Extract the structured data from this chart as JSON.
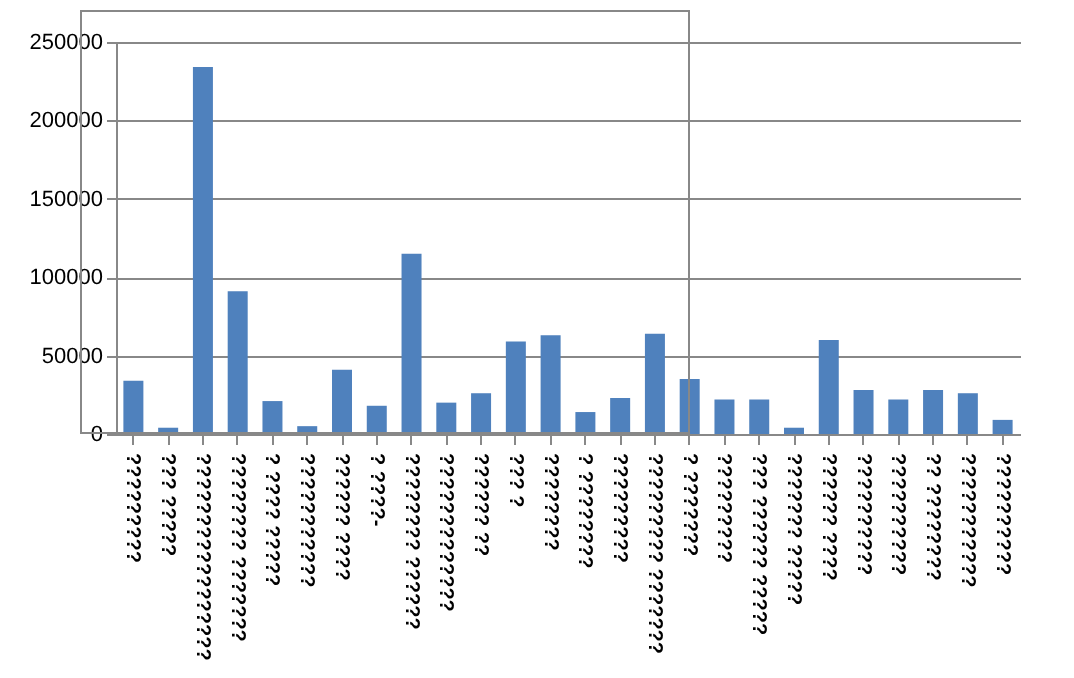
{
  "chart_data": {
    "type": "bar",
    "categories": [
      "?????????",
      "??? ?????",
      "?????????????????",
      "???????? ???????",
      "? ???? ?????",
      "???????????",
      "?????? ????",
      "? ????-",
      "???????? ??????",
      "?????????????",
      "?????? ??",
      "??? ?",
      "????????",
      "? ????????",
      "?????????",
      "????????? ???????",
      "? ???????",
      "?????????",
      "??? ?????? ?????",
      "??????? ?????",
      "?????? ????",
      "??????????",
      "??????????",
      "?? ????????",
      "???????????",
      "??????????"
    ],
    "values": [
      34000,
      4000,
      234000,
      91000,
      21000,
      5000,
      41000,
      18000,
      115000,
      20000,
      26000,
      59000,
      63000,
      14000,
      23000,
      64000,
      35000,
      22000,
      22000,
      4000,
      60000,
      28000,
      22000,
      28000,
      26000,
      9000
    ],
    "color": "#4f81bd",
    "ylim": [
      0,
      250000
    ],
    "yticks": [
      0,
      50000,
      100000,
      150000,
      200000,
      250000
    ],
    "grid": "y"
  }
}
